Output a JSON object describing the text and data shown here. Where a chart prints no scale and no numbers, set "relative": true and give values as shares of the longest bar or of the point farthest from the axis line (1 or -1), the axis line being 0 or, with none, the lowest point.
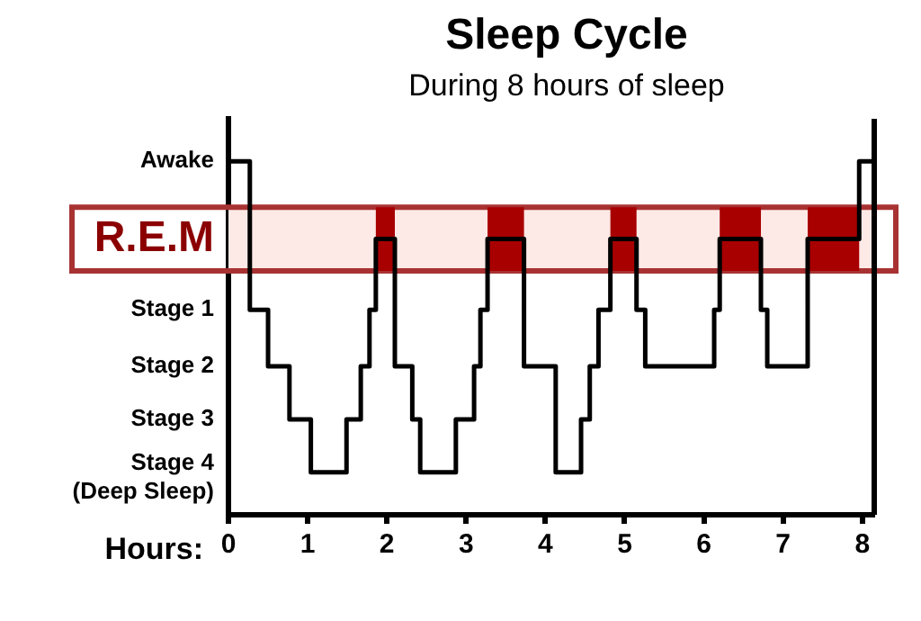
{
  "chart_data": {
    "type": "step",
    "title": "Sleep Cycle",
    "subtitle": "During 8 hours of sleep",
    "xlabel": "Hours:",
    "x": [
      0,
      0.27,
      0.5,
      0.77,
      1.04,
      1.49,
      1.67,
      1.78,
      1.86,
      2.1,
      2.32,
      2.42,
      2.87,
      3.1,
      3.18,
      3.27,
      3.73,
      4.13,
      4.45,
      4.56,
      4.67,
      4.82,
      5.15,
      5.26,
      6.13,
      6.2,
      6.72,
      6.8,
      7.31,
      7.96,
      8.15
    ],
    "series": [
      {
        "color": "#000000",
        "values": [
          1,
          0.58,
          0.42,
          0.27,
          0.12,
          0.27,
          0.42,
          0.58,
          0.78,
          0.42,
          0.27,
          0.12,
          0.27,
          0.42,
          0.58,
          0.78,
          0.42,
          0.12,
          0.27,
          0.42,
          0.58,
          0.78,
          0.58,
          0.42,
          0.58,
          0.78,
          0.58,
          0.42,
          0.78,
          1,
          1
        ]
      }
    ],
    "relative": true,
    "annotations": [
      "Awake",
      "Stage 1",
      "Stage 2",
      "Stage 3",
      "Stage 4\n(Deep Sleep)"
    ],
    "xlim": [
      0,
      8.15
    ],
    "xticks": [
      0,
      1,
      2,
      3,
      4,
      5,
      6,
      7,
      8
    ],
    "bands": [
      {
        "axis": "y",
        "from": 0.69,
        "to": 0.87,
        "label": "R.E.M",
        "color": "#fde9e6"
      },
      {
        "axis": "x",
        "from": 1.86,
        "to": 2.1,
        "color": "#a80000"
      },
      {
        "axis": "x",
        "from": 3.27,
        "to": 3.73,
        "color": "#a80000"
      },
      {
        "axis": "x",
        "from": 4.82,
        "to": 5.15,
        "color": "#a80000"
      },
      {
        "axis": "x",
        "from": 6.2,
        "to": 6.72,
        "color": "#a80000"
      },
      {
        "axis": "x",
        "from": 7.31,
        "to": 7.96,
        "color": "#a80000"
      }
    ],
    "grid": false,
    "legend": false,
    "marker": "none",
    "line_style": "solid"
  }
}
